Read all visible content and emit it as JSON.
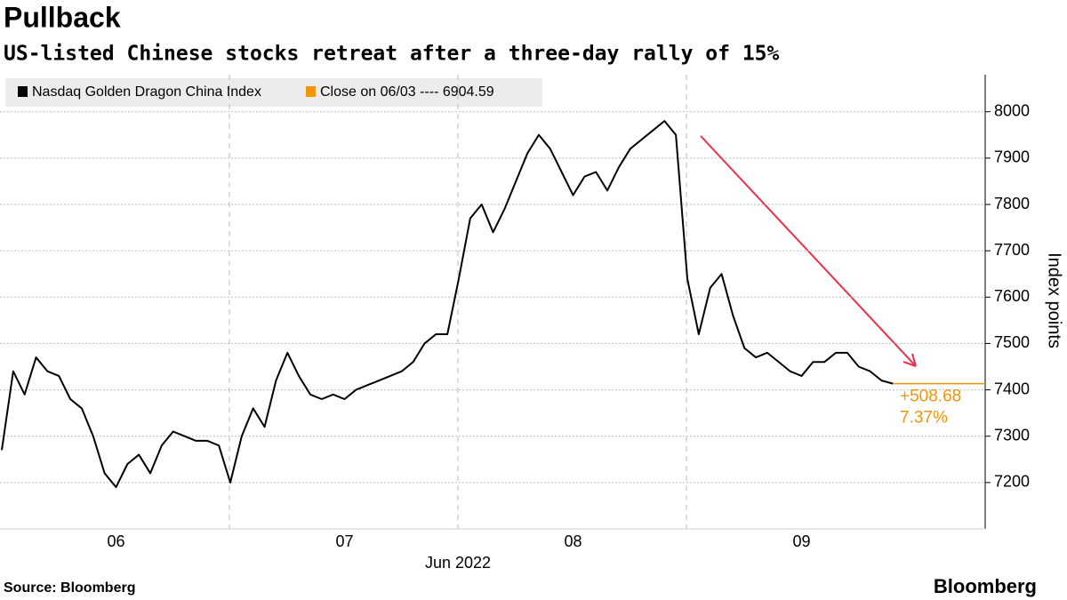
{
  "chart_data": {
    "type": "line",
    "title": "Pullback",
    "subtitle": "US-listed Chinese stocks retreat after a three-day rally of 15%",
    "x_label": "Jun 2022",
    "y_label": "Index points",
    "source": "Source: Bloomberg",
    "brand": "Bloomberg",
    "categories": [
      null,
      null,
      null,
      null,
      null,
      null,
      null,
      null,
      null,
      null,
      "06",
      null,
      null,
      null,
      null,
      null,
      null,
      null,
      null,
      null,
      null,
      null,
      null,
      null,
      null,
      null,
      null,
      null,
      null,
      null,
      "07",
      null,
      null,
      null,
      null,
      null,
      null,
      null,
      null,
      null,
      null,
      null,
      null,
      null,
      null,
      null,
      null,
      null,
      null,
      null,
      "08",
      null,
      null,
      null,
      null,
      null,
      null,
      null,
      null,
      null,
      null,
      null,
      null,
      null,
      null,
      null,
      null,
      null,
      null,
      null,
      "09",
      null,
      null,
      null,
      null,
      null,
      null,
      null,
      null
    ],
    "series": [
      {
        "name": "Nasdaq Golden Dragon China Index",
        "color": "#000000",
        "values": [
          7270,
          7440,
          7390,
          7470,
          7440,
          7430,
          7380,
          7360,
          7300,
          7220,
          7190,
          7240,
          7260,
          7220,
          7280,
          7310,
          7300,
          7290,
          7290,
          7280,
          7200,
          7300,
          7360,
          7320,
          7420,
          7480,
          7430,
          7390,
          7380,
          7390,
          7380,
          7400,
          7410,
          7420,
          7430,
          7440,
          7460,
          7500,
          7520,
          7520,
          7640,
          7770,
          7800,
          7740,
          7790,
          7850,
          7910,
          7950,
          7920,
          7870,
          7820,
          7860,
          7870,
          7830,
          7880,
          7920,
          7940,
          7960,
          7980,
          7950,
          7640,
          7520,
          7620,
          7650,
          7560,
          7490,
          7470,
          7480,
          7460,
          7440,
          7430,
          7460,
          7460,
          7480,
          7480,
          7450,
          7440,
          7420,
          7413.27
        ]
      }
    ],
    "reference": {
      "name": "Close on 06/03 ---- 6904.59",
      "color": "#f0950c"
    },
    "annotations": [
      "+508.68",
      "7.37%"
    ],
    "ylim": [
      7100,
      8080
    ],
    "yticks": [
      7200,
      7300,
      7400,
      7500,
      7600,
      7700,
      7800,
      7900,
      8000
    ],
    "grid": true
  }
}
